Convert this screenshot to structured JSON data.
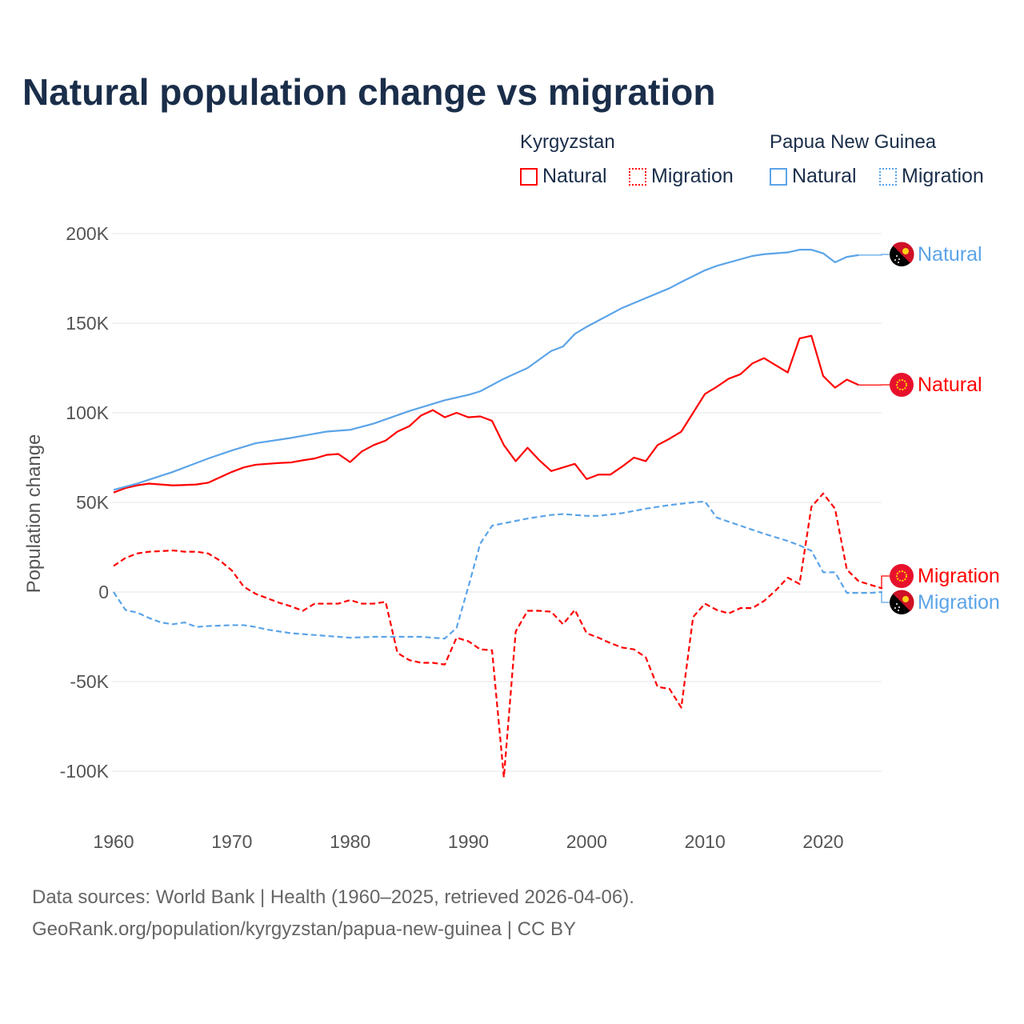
{
  "title": "Natural population change vs migration",
  "legend": {
    "groups": [
      {
        "name": "Kyrgyzstan",
        "color": "#ff0000",
        "items": [
          "Natural",
          "Migration"
        ]
      },
      {
        "name": "Papua New Guinea",
        "color": "#5ba4e8",
        "items": [
          "Natural",
          "Migration"
        ]
      }
    ]
  },
  "footer": {
    "line1": "Data sources: World Bank | Health (1960–2025, retrieved 2026-04-06).",
    "line2": "GeoRank.org/population/kyrgyzstan/papua-new-guinea | CC BY"
  },
  "chart_data": {
    "type": "line",
    "title": "Natural population change vs migration",
    "xlabel": "",
    "ylabel": "Population change",
    "xlim": [
      1960,
      2025
    ],
    "ylim": [
      -120000,
      200000
    ],
    "x_ticks": [
      1960,
      1970,
      1980,
      1990,
      2000,
      2010,
      2020
    ],
    "x_tick_labels": [
      "1960",
      "1970",
      "1980",
      "1990",
      "2000",
      "2010",
      "2020"
    ],
    "y_ticks": [
      200000,
      150000,
      100000,
      50000,
      0,
      -50000,
      -100000
    ],
    "y_tick_labels": [
      "200K",
      "150K",
      "100K",
      "50K",
      "0",
      "-50K",
      "-100K"
    ],
    "grid": true,
    "legend_position": "top-right",
    "series": [
      {
        "name": "Kyrgyzstan Natural",
        "label": "Natural",
        "color": "#ff0000",
        "dash": false,
        "flag": "kyrgyzstan",
        "x": [
          1960,
          1961,
          1962,
          1963,
          1964,
          1965,
          1966,
          1967,
          1968,
          1969,
          1970,
          1971,
          1972,
          1973,
          1974,
          1975,
          1976,
          1977,
          1978,
          1979,
          1980,
          1981,
          1982,
          1983,
          1984,
          1985,
          1986,
          1987,
          1988,
          1989,
          1990,
          1991,
          1992,
          1993,
          1994,
          1995,
          1996,
          1997,
          1998,
          1999,
          2000,
          2001,
          2002,
          2003,
          2004,
          2005,
          2006,
          2007,
          2008,
          2009,
          2010,
          2011,
          2012,
          2013,
          2014,
          2015,
          2016,
          2017,
          2018,
          2019,
          2020,
          2021,
          2022,
          2023
        ],
        "y": [
          55.5,
          58,
          59.5,
          60.5,
          60,
          59.5,
          59.7,
          60,
          61,
          64,
          67,
          69.5,
          71,
          71.5,
          72,
          72.3,
          73.5,
          74.5,
          76.5,
          77,
          72.5,
          78.5,
          82,
          84.5,
          89.5,
          92.5,
          98.5,
          101.5,
          97.5,
          100,
          97.5,
          98,
          95.5,
          82,
          73,
          80.5,
          73.5,
          67.5,
          69.5,
          71.5,
          63,
          65.5,
          65.5,
          70,
          75,
          73,
          82,
          85.5,
          89.5,
          100,
          110.5,
          114.5,
          119,
          121.5,
          127.5,
          130.5,
          126.5,
          122.5,
          141.5,
          143,
          120.5,
          114,
          118.5,
          115.5
        ],
        "y_unit": "thousands"
      },
      {
        "name": "Papua New Guinea Natural",
        "label": "Natural",
        "color": "#5ba4e8",
        "dash": false,
        "flag": "papua-new-guinea",
        "x": [
          1960,
          1962,
          1965,
          1968,
          1970,
          1972,
          1975,
          1978,
          1980,
          1982,
          1985,
          1988,
          1990,
          1991,
          1993,
          1995,
          1997,
          1998,
          1999,
          2000,
          2003,
          2005,
          2007,
          2008,
          2010,
          2011,
          2014,
          2015,
          2017,
          2018,
          2019,
          2020,
          2021,
          2022,
          2023
        ],
        "y": [
          57,
          60.5,
          67,
          74.5,
          79,
          83,
          86,
          89.5,
          90.5,
          94,
          101,
          107,
          110,
          112,
          119,
          125,
          134.5,
          137,
          144,
          148,
          158.5,
          164,
          169.5,
          173,
          179.5,
          182,
          187.5,
          188.5,
          189.5,
          191,
          191,
          189,
          184,
          187,
          188
        ],
        "y_unit": "thousands"
      },
      {
        "name": "Kyrgyzstan Migration",
        "label": "Migration",
        "color": "#ff0000",
        "dash": true,
        "flag": "kyrgyzstan",
        "x": [
          1960,
          1961,
          1962,
          1963,
          1964,
          1965,
          1966,
          1967,
          1968,
          1969,
          1970,
          1971,
          1972,
          1973,
          1974,
          1975,
          1976,
          1977,
          1978,
          1979,
          1980,
          1981,
          1982,
          1983,
          1984,
          1985,
          1986,
          1987,
          1988,
          1989,
          1990,
          1991,
          1992,
          1993,
          1994,
          1995,
          1996,
          1997,
          1998,
          1999,
          2000,
          2001,
          2002,
          2003,
          2004,
          2005,
          2006,
          2007,
          2008,
          2009,
          2010,
          2011,
          2012,
          2013,
          2014,
          2015,
          2016,
          2017,
          2018,
          2019,
          2020,
          2021,
          2022,
          2023,
          2024,
          2025
        ],
        "y": [
          14.5,
          19,
          21.5,
          22.5,
          22.8,
          23.2,
          22.5,
          22.5,
          21.5,
          17.5,
          12,
          3,
          -1,
          -3.5,
          -6,
          -8,
          -10.5,
          -6.5,
          -6.5,
          -6.5,
          -4.5,
          -6.5,
          -6.5,
          -5.5,
          -34,
          -38,
          -39.5,
          -39.5,
          -40.5,
          -25.5,
          -27.5,
          -32,
          -32.5,
          -103.5,
          -22,
          -10.5,
          -10.5,
          -11,
          -18,
          -10,
          -23,
          -25.5,
          -28.5,
          -31,
          -32,
          -36.5,
          -53,
          -54,
          -64.5,
          -14,
          -6.5,
          -10,
          -12,
          -9,
          -9,
          -5,
          1,
          8,
          4.5,
          47.5,
          55,
          46.5,
          12.5,
          6,
          4,
          2
        ],
        "y_unit": "thousands"
      },
      {
        "name": "Papua New Guinea Migration",
        "label": "Migration",
        "color": "#5ba4e8",
        "dash": true,
        "flag": "papua-new-guinea",
        "x": [
          1960,
          1961,
          1962,
          1963,
          1964,
          1965,
          1966,
          1967,
          1968,
          1970,
          1971,
          1972,
          1973,
          1975,
          1980,
          1982,
          1984,
          1986,
          1988,
          1989,
          1990,
          1991,
          1992,
          1995,
          1997,
          1998,
          2000,
          2001,
          2003,
          2005,
          2007,
          2009,
          2010,
          2011,
          2013,
          2015,
          2017,
          2018,
          2019,
          2020,
          2021,
          2022,
          2023,
          2024,
          2025
        ],
        "y": [
          0,
          -10,
          -11.5,
          -14.5,
          -17,
          -18,
          -17,
          -19.5,
          -19,
          -18.5,
          -18.5,
          -19.5,
          -21,
          -23,
          -25.5,
          -25,
          -25,
          -25,
          -26,
          -20,
          3,
          27,
          37,
          41,
          43,
          43.5,
          42.5,
          42.5,
          44,
          46.5,
          48.5,
          50,
          50.5,
          41.5,
          37,
          32.5,
          28.5,
          26,
          23,
          11,
          11,
          -0.5,
          -0.5,
          -0.5,
          0
        ],
        "y_unit": "thousands"
      }
    ]
  }
}
